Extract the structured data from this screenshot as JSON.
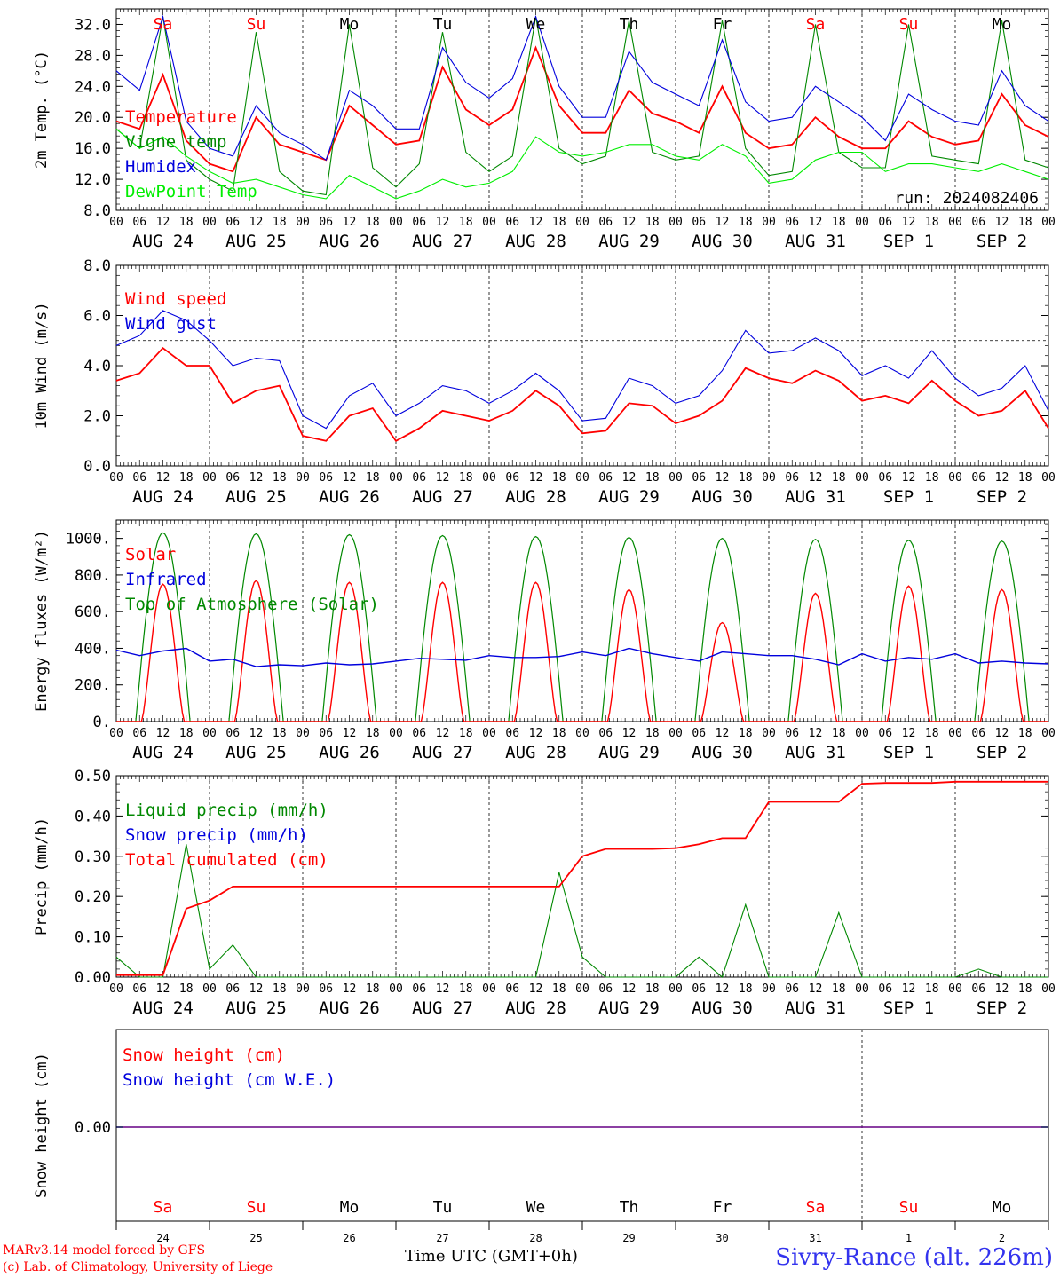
{
  "chart_data": [
    {
      "type": "line",
      "ylabel": "2m Temp. (°C)",
      "ylim": [
        8,
        34
      ],
      "yticks": [
        "8.0",
        "12.0",
        "16.0",
        "20.0",
        "24.0",
        "28.0",
        "32.0"
      ],
      "ytick_values": [
        8,
        12,
        16,
        20,
        24,
        28,
        32
      ],
      "run_label": "run: 2024082406",
      "x_hours": [
        0,
        6,
        12,
        18,
        24,
        30,
        36,
        42,
        48,
        54,
        60,
        66,
        72,
        78,
        84,
        90,
        96,
        102,
        108,
        114,
        120,
        126,
        132,
        138,
        144,
        150,
        156,
        162,
        168,
        174,
        180,
        186,
        192,
        198,
        204,
        210,
        216,
        222,
        228,
        234,
        240
      ],
      "series": [
        {
          "name": "Temperature",
          "color": "#ff0000",
          "values": [
            19.5,
            18.5,
            25.5,
            17.0,
            14.0,
            13.0,
            20.0,
            16.5,
            15.5,
            14.5,
            21.5,
            19.0,
            16.5,
            17.0,
            26.5,
            21.0,
            19.0,
            21.0,
            29.0,
            21.5,
            18.0,
            18.0,
            23.5,
            20.5,
            19.5,
            18.0,
            24.0,
            18.0,
            16.0,
            16.5,
            20.0,
            17.5,
            16.0,
            16.0,
            19.5,
            17.5,
            16.5,
            17.0,
            23.0,
            19.0,
            17.5
          ]
        },
        {
          "name": "Vigne temp",
          "color": "#008800",
          "values": [
            18.5,
            16.0,
            33.0,
            14.5,
            12.0,
            10.5,
            31.0,
            13.0,
            10.5,
            10.0,
            32.0,
            13.5,
            11.0,
            14.0,
            31.0,
            15.5,
            13.0,
            15.0,
            33.0,
            16.0,
            14.0,
            15.0,
            32.5,
            15.5,
            14.5,
            15.0,
            32.5,
            16.0,
            12.5,
            13.0,
            32.0,
            15.5,
            13.5,
            13.5,
            32.0,
            15.0,
            14.5,
            14.0,
            32.5,
            14.5,
            13.5
          ]
        },
        {
          "name": "Humidex",
          "color": "#0000dd",
          "values": [
            26.0,
            23.5,
            33.0,
            19.5,
            16.0,
            15.0,
            21.5,
            18.0,
            16.5,
            14.5,
            23.5,
            21.5,
            18.5,
            18.5,
            29.0,
            24.5,
            22.5,
            25.0,
            33.0,
            24.0,
            20.0,
            20.0,
            28.5,
            24.5,
            23.0,
            21.5,
            30.0,
            22.0,
            19.5,
            20.0,
            24.0,
            22.0,
            20.0,
            17.0,
            23.0,
            21.0,
            19.5,
            19.0,
            26.0,
            21.5,
            19.5
          ]
        },
        {
          "name": "DewPoint Temp",
          "color": "#00ee00",
          "values": [
            18.5,
            16.0,
            17.5,
            15.0,
            13.0,
            11.5,
            12.0,
            11.0,
            10.0,
            9.5,
            12.5,
            11.0,
            9.5,
            10.5,
            12.0,
            11.0,
            11.5,
            13.0,
            17.5,
            15.5,
            15.0,
            15.5,
            16.5,
            16.5,
            15.0,
            14.5,
            16.5,
            15.0,
            11.5,
            12.0,
            14.5,
            15.5,
            15.5,
            13.0,
            14.0,
            14.0,
            13.5,
            13.0,
            14.0,
            13.0,
            12.0
          ]
        }
      ]
    },
    {
      "type": "line",
      "ylabel": "10m Wind (m/s)",
      "ylim": [
        0,
        8
      ],
      "yticks": [
        "0.0",
        "2.0",
        "4.0",
        "6.0",
        "8.0"
      ],
      "ytick_values": [
        0,
        2,
        4,
        6,
        8
      ],
      "reference_line": 5,
      "x_hours": [
        0,
        6,
        12,
        18,
        24,
        30,
        36,
        42,
        48,
        54,
        60,
        66,
        72,
        78,
        84,
        90,
        96,
        102,
        108,
        114,
        120,
        126,
        132,
        138,
        144,
        150,
        156,
        162,
        168,
        174,
        180,
        186,
        192,
        198,
        204,
        210,
        216,
        222,
        228,
        234,
        240
      ],
      "series": [
        {
          "name": "Wind speed",
          "color": "#ff0000",
          "values": [
            3.4,
            3.7,
            4.7,
            4.0,
            4.0,
            2.5,
            3.0,
            3.2,
            1.2,
            1.0,
            2.0,
            2.3,
            1.0,
            1.5,
            2.2,
            2.0,
            1.8,
            2.2,
            3.0,
            2.4,
            1.3,
            1.4,
            2.5,
            2.4,
            1.7,
            2.0,
            2.6,
            3.9,
            3.5,
            3.3,
            3.8,
            3.4,
            2.6,
            2.8,
            2.5,
            3.4,
            2.6,
            2.0,
            2.2,
            3.0,
            1.5
          ]
        },
        {
          "name": "Wind gust",
          "color": "#0000dd",
          "values": [
            4.8,
            5.2,
            6.2,
            5.8,
            5.0,
            4.0,
            4.3,
            4.2,
            2.0,
            1.5,
            2.8,
            3.3,
            2.0,
            2.5,
            3.2,
            3.0,
            2.5,
            3.0,
            3.7,
            3.0,
            1.8,
            1.9,
            3.5,
            3.2,
            2.5,
            2.8,
            3.8,
            5.4,
            4.5,
            4.6,
            5.1,
            4.6,
            3.6,
            4.0,
            3.5,
            4.6,
            3.5,
            2.8,
            3.1,
            4.0,
            2.2
          ]
        }
      ]
    },
    {
      "type": "line",
      "ylabel": "Energy fluxes (W/m²)",
      "ylim": [
        0,
        1100
      ],
      "yticks": [
        "0.",
        "200.",
        "400.",
        "600.",
        "800.",
        "1000."
      ],
      "ytick_values": [
        0,
        200,
        400,
        600,
        800,
        1000
      ],
      "solar_peaks": [
        750,
        770,
        760,
        760,
        760,
        720,
        540,
        700,
        740,
        720
      ],
      "toa_peaks": [
        1030,
        1025,
        1020,
        1015,
        1010,
        1005,
        1000,
        995,
        990,
        985
      ],
      "infrared": [
        390,
        360,
        385,
        400,
        330,
        340,
        300,
        310,
        305,
        320,
        310,
        315,
        330,
        345,
        340,
        335,
        360,
        350,
        350,
        355,
        380,
        360,
        400,
        370,
        350,
        330,
        380,
        370,
        360,
        360,
        340,
        310,
        370,
        330,
        350,
        340,
        370,
        320,
        330,
        320,
        315
      ],
      "series": [
        {
          "name": "Solar",
          "color": "#ff0000"
        },
        {
          "name": "Infrared",
          "color": "#0000dd"
        },
        {
          "name": "Top of Atmosphere (Solar)",
          "color": "#008800"
        }
      ]
    },
    {
      "type": "line",
      "ylabel": "Precip (mm/h)",
      "ylim": [
        0,
        0.5
      ],
      "yticks": [
        "0.00",
        "0.10",
        "0.20",
        "0.30",
        "0.40",
        "0.50"
      ],
      "ytick_values": [
        0,
        0.1,
        0.2,
        0.3,
        0.4,
        0.5
      ],
      "x_hours": [
        0,
        6,
        12,
        18,
        24,
        30,
        36,
        42,
        48,
        54,
        60,
        66,
        72,
        78,
        84,
        90,
        96,
        102,
        108,
        114,
        120,
        126,
        132,
        138,
        144,
        150,
        156,
        162,
        168,
        174,
        180,
        186,
        192,
        198,
        204,
        210,
        216,
        222,
        228,
        234,
        240
      ],
      "series": [
        {
          "name": "Liquid precip (mm/h)",
          "color": "#008800",
          "values": [
            0.05,
            0,
            0,
            0.33,
            0.02,
            0.08,
            0,
            0,
            0,
            0,
            0,
            0,
            0,
            0,
            0,
            0,
            0,
            0,
            0,
            0.26,
            0.05,
            0,
            0,
            0,
            0,
            0.05,
            0,
            0.18,
            0,
            0,
            0,
            0.16,
            0,
            0,
            0,
            0,
            0,
            0.02,
            0,
            0,
            0
          ]
        },
        {
          "name": "Snow precip (mm/h)",
          "color": "#0000dd",
          "values": []
        },
        {
          "name": "Total cumulated (cm)",
          "color": "#ff0000",
          "values": [
            0.005,
            0.005,
            0.005,
            0.17,
            0.19,
            0.225,
            0.225,
            0.225,
            0.225,
            0.225,
            0.225,
            0.225,
            0.225,
            0.225,
            0.225,
            0.225,
            0.225,
            0.225,
            0.225,
            0.225,
            0.3,
            0.318,
            0.318,
            0.318,
            0.32,
            0.33,
            0.345,
            0.345,
            0.435,
            0.435,
            0.435,
            0.435,
            0.48,
            0.482,
            0.482,
            0.482,
            0.485,
            0.485,
            0.485,
            0.485,
            0.485
          ]
        }
      ]
    },
    {
      "type": "line",
      "ylabel": "Snow height (cm)",
      "yticks": [
        "0.00"
      ],
      "series": [
        {
          "name": "Snow height (cm)",
          "color": "#ff0000",
          "values": [
            0,
            0
          ]
        },
        {
          "name": "Snow height (cm W.E.)",
          "color": "#0000dd",
          "values": [
            0,
            0
          ]
        }
      ]
    }
  ],
  "weekdays": [
    {
      "label": "Sa",
      "color": "#ff0000"
    },
    {
      "label": "Su",
      "color": "#ff0000"
    },
    {
      "label": "Mo",
      "color": "#000000"
    },
    {
      "label": "Tu",
      "color": "#000000"
    },
    {
      "label": "We",
      "color": "#000000"
    },
    {
      "label": "Th",
      "color": "#000000"
    },
    {
      "label": "Fr",
      "color": "#000000"
    },
    {
      "label": "Sa",
      "color": "#ff0000"
    },
    {
      "label": "Su",
      "color": "#ff0000"
    },
    {
      "label": "Mo",
      "color": "#000000"
    }
  ],
  "day_labels": [
    "AUG 24",
    "AUG 25",
    "AUG 26",
    "AUG 27",
    "AUG 28",
    "AUG 29",
    "AUG 30",
    "AUG 31",
    "SEP  1",
    "SEP  2"
  ],
  "day_numbers": [
    "24",
    "25",
    "26",
    "27",
    "28",
    "29",
    "30",
    "31",
    "1",
    "2"
  ],
  "hour_ticks": [
    "00",
    "06",
    "12",
    "18"
  ],
  "end_tick": "00",
  "xlabel": "Time UTC (GMT+0h)",
  "footer": {
    "line1": "MARv3.14 model forced by GFS",
    "line2": "(c) Lab. of Climatology, University of Liege",
    "station": "Sivry-Rance (alt. 226m)"
  }
}
